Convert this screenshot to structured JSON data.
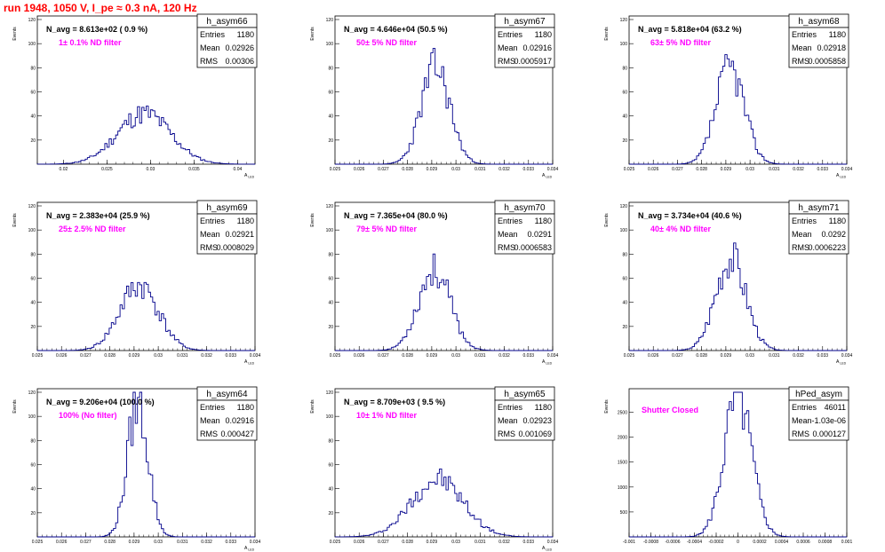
{
  "page_title": "run 1948,  1050 V, I_pe ≈ 0.3 nA, 120 Hz",
  "colors": {
    "histogram": "#00008b",
    "annotation": "#ff00ff",
    "title": "#ff0000",
    "axes": "#000000"
  },
  "chart_data": [
    {
      "type": "bar",
      "name": "h_asym66",
      "title": "N_avg = 8.613e+02 ( 0.9 %)",
      "annotation": "1± 0.1% ND filter",
      "stats": [
        [
          "Entries",
          "1180"
        ],
        [
          "Mean",
          "0.02926"
        ],
        [
          "RMS",
          "0.00306"
        ]
      ],
      "ylabel": "Events",
      "xlabel": "A_LED",
      "xlim": [
        0.017,
        0.042
      ],
      "ylim": [
        0,
        120
      ],
      "xticks": [
        0.02,
        0.025,
        0.03,
        0.035,
        0.04
      ],
      "xtick_labels": [
        "0.02",
        "0.025",
        "0.03",
        "0.035",
        "0.04"
      ],
      "yticks": [
        20,
        40,
        60,
        80,
        100,
        120
      ],
      "dist": {
        "mean": 0.02926,
        "sigma": 0.00306,
        "peak": 42,
        "seed": 11
      }
    },
    {
      "type": "bar",
      "name": "h_asym67",
      "title": "N_avg = 4.646e+04 (50.5 %)",
      "annotation": "50± 5% ND filter",
      "stats": [
        [
          "Entries",
          "1180"
        ],
        [
          "Mean",
          "0.02916"
        ],
        [
          "RMS",
          "0.0005917"
        ]
      ],
      "ylabel": "Events",
      "xlabel": "A_LED",
      "xlim": [
        0.025,
        0.034
      ],
      "ylim": [
        0,
        120
      ],
      "xticks": [
        0.025,
        0.026,
        0.027,
        0.028,
        0.029,
        0.03,
        0.031,
        0.032,
        0.033,
        0.034
      ],
      "xtick_labels": [
        "0.025",
        "0.026",
        "0.027",
        "0.028",
        "0.029",
        "0.03",
        "0.031",
        "0.032",
        "0.033",
        "0.034"
      ],
      "yticks": [
        20,
        40,
        60,
        80,
        100,
        120
      ],
      "dist": {
        "mean": 0.02916,
        "sigma": 0.0005917,
        "peak": 80,
        "seed": 23
      }
    },
    {
      "type": "bar",
      "name": "h_asym68",
      "title": "N_avg = 5.818e+04 (63.2 %)",
      "annotation": "63± 5% ND filter",
      "stats": [
        [
          "Entries",
          "1180"
        ],
        [
          "Mean",
          "0.02918"
        ],
        [
          "RMS",
          "0.0005858"
        ]
      ],
      "ylabel": "Events",
      "xlabel": "A_LED",
      "xlim": [
        0.025,
        0.034
      ],
      "ylim": [
        0,
        120
      ],
      "xticks": [
        0.025,
        0.026,
        0.027,
        0.028,
        0.029,
        0.03,
        0.031,
        0.032,
        0.033,
        0.034
      ],
      "xtick_labels": [
        "0.025",
        "0.026",
        "0.027",
        "0.028",
        "0.029",
        "0.03",
        "0.031",
        "0.032",
        "0.033",
        "0.034"
      ],
      "yticks": [
        20,
        40,
        60,
        80,
        100,
        120
      ],
      "dist": {
        "mean": 0.02918,
        "sigma": 0.0005858,
        "peak": 80,
        "seed": 37
      }
    },
    {
      "type": "bar",
      "name": "h_asym69",
      "title": "N_avg = 2.383e+04 (25.9 %)",
      "annotation": "25± 2.5% ND filter",
      "stats": [
        [
          "Entries",
          "1180"
        ],
        [
          "Mean",
          "0.02921"
        ],
        [
          "RMS",
          "0.0008029"
        ]
      ],
      "ylabel": "Events",
      "xlabel": "A_LED",
      "xlim": [
        0.025,
        0.034
      ],
      "ylim": [
        0,
        120
      ],
      "xticks": [
        0.025,
        0.026,
        0.027,
        0.028,
        0.029,
        0.03,
        0.031,
        0.032,
        0.033,
        0.034
      ],
      "xtick_labels": [
        "0.025",
        "0.026",
        "0.027",
        "0.028",
        "0.029",
        "0.03",
        "0.031",
        "0.032",
        "0.033",
        "0.034"
      ],
      "yticks": [
        20,
        40,
        60,
        80,
        100,
        120
      ],
      "dist": {
        "mean": 0.02921,
        "sigma": 0.0008029,
        "peak": 54,
        "seed": 41
      }
    },
    {
      "type": "bar",
      "name": "h_asym70",
      "title": "N_avg = 7.365e+04 (80.0 %)",
      "annotation": "79± 5% ND filter",
      "stats": [
        [
          "Entries",
          "1180"
        ],
        [
          "Mean",
          "0.0291"
        ],
        [
          "RMS",
          "0.0006583"
        ]
      ],
      "ylabel": "Events",
      "xlabel": "A_LED",
      "xlim": [
        0.025,
        0.034
      ],
      "ylim": [
        0,
        120
      ],
      "xticks": [
        0.025,
        0.026,
        0.027,
        0.028,
        0.029,
        0.03,
        0.031,
        0.032,
        0.033,
        0.034
      ],
      "xtick_labels": [
        "0.025",
        "0.026",
        "0.027",
        "0.028",
        "0.029",
        "0.03",
        "0.031",
        "0.032",
        "0.033",
        "0.034"
      ],
      "yticks": [
        20,
        40,
        60,
        80,
        100,
        120
      ],
      "dist": {
        "mean": 0.0291,
        "sigma": 0.0006583,
        "peak": 67,
        "seed": 53
      }
    },
    {
      "type": "bar",
      "name": "h_asym71",
      "title": "N_avg = 3.734e+04 (40.6 %)",
      "annotation": "40± 4% ND filter",
      "stats": [
        [
          "Entries",
          "1180"
        ],
        [
          "Mean",
          "0.0292"
        ],
        [
          "RMS",
          "0.0006223"
        ]
      ],
      "ylabel": "Events",
      "xlabel": "A_LED",
      "xlim": [
        0.025,
        0.034
      ],
      "ylim": [
        0,
        120
      ],
      "xticks": [
        0.025,
        0.026,
        0.027,
        0.028,
        0.029,
        0.03,
        0.031,
        0.032,
        0.033,
        0.034
      ],
      "xtick_labels": [
        "0.025",
        "0.026",
        "0.027",
        "0.028",
        "0.029",
        "0.03",
        "0.031",
        "0.032",
        "0.033",
        "0.034"
      ],
      "yticks": [
        20,
        40,
        60,
        80,
        100,
        120
      ],
      "dist": {
        "mean": 0.0292,
        "sigma": 0.0006223,
        "peak": 78,
        "seed": 67
      }
    },
    {
      "type": "bar",
      "name": "h_asym64",
      "title": "N_avg = 9.206e+04 (100.0 %)",
      "annotation": "100% (No filter)",
      "stats": [
        [
          "Entries",
          "1180"
        ],
        [
          "Mean",
          "0.02916"
        ],
        [
          "RMS",
          "0.000427"
        ]
      ],
      "ylabel": "Events",
      "xlabel": "A_LED",
      "xlim": [
        0.025,
        0.034
      ],
      "ylim": [
        0,
        120
      ],
      "xticks": [
        0.025,
        0.026,
        0.027,
        0.028,
        0.029,
        0.03,
        0.031,
        0.032,
        0.033,
        0.034
      ],
      "xtick_labels": [
        "0.025",
        "0.026",
        "0.027",
        "0.028",
        "0.029",
        "0.03",
        "0.031",
        "0.032",
        "0.033",
        "0.034"
      ],
      "yticks": [
        20,
        40,
        60,
        80,
        100,
        120
      ],
      "dist": {
        "mean": 0.02916,
        "sigma": 0.000427,
        "peak": 112,
        "seed": 79
      }
    },
    {
      "type": "bar",
      "name": "h_asym65",
      "title": "N_avg = 8.709e+03 ( 9.5 %)",
      "annotation": "10± 1% ND filter",
      "stats": [
        [
          "Entries",
          "1180"
        ],
        [
          "Mean",
          "0.02923"
        ],
        [
          "RMS",
          "0.001069"
        ]
      ],
      "ylabel": "Events",
      "xlabel": "A_LED",
      "xlim": [
        0.025,
        0.034
      ],
      "ylim": [
        0,
        120
      ],
      "xticks": [
        0.025,
        0.026,
        0.027,
        0.028,
        0.029,
        0.03,
        0.031,
        0.032,
        0.033,
        0.034
      ],
      "xtick_labels": [
        "0.025",
        "0.026",
        "0.027",
        "0.028",
        "0.029",
        "0.03",
        "0.031",
        "0.032",
        "0.033",
        "0.034"
      ],
      "yticks": [
        20,
        40,
        60,
        80,
        100,
        120
      ],
      "dist": {
        "mean": 0.02923,
        "sigma": 0.001069,
        "peak": 48,
        "seed": 97
      }
    },
    {
      "type": "bar",
      "name": "hPed_asym",
      "title": "",
      "annotation": "Shutter Closed",
      "stats": [
        [
          "Entries",
          "46011"
        ],
        [
          "Mean",
          "-1.03e-06"
        ],
        [
          "RMS",
          "0.000127"
        ]
      ],
      "ylabel": "Events",
      "xlabel": "",
      "xlim": [
        -0.001,
        0.001
      ],
      "ylim": [
        0,
        2900
      ],
      "xticks": [
        -0.001,
        -0.0008,
        -0.0006,
        -0.0004,
        -0.0002,
        0,
        0.0002,
        0.0004,
        0.0006,
        0.0008,
        0.001
      ],
      "xtick_labels": [
        "-0.001",
        "-0.0008",
        "-0.0006",
        "-0.0004",
        "-0.0002",
        "0",
        "0.0002",
        "0.0004",
        "0.0006",
        "0.0008",
        "0.001"
      ],
      "yticks": [
        500,
        1000,
        1500,
        2000,
        2500
      ],
      "dist": {
        "mean": -1.03e-06,
        "sigma": 0.000127,
        "peak": 2780,
        "seed": 5
      }
    }
  ]
}
